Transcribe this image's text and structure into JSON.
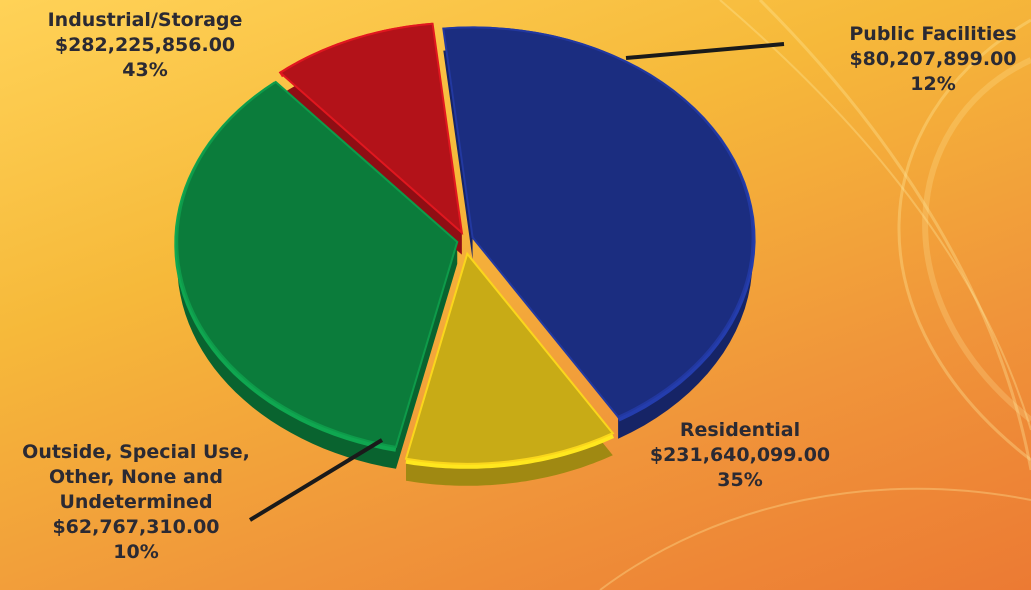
{
  "chart_data": {
    "type": "pie",
    "style": "3d-exploded",
    "title": "",
    "slices": [
      {
        "name": "Industrial/Storage",
        "amount": "$282,225,856.00",
        "value": 282225856.0,
        "percent": "43%",
        "color": "#1b2d80"
      },
      {
        "name": "Public Facilities",
        "amount": "$80,207,899.00",
        "value": 80207899.0,
        "percent": "12%",
        "color": "#c8ab16"
      },
      {
        "name": "Residential",
        "amount": "$231,640,099.00",
        "value": 231640099.0,
        "percent": "35%",
        "color": "#0b7c3b"
      },
      {
        "name": "Outside, Special Use, Other, None and Undetermined",
        "name_lines": [
          "Outside, Special Use,",
          "Other, None and",
          "Undetermined"
        ],
        "amount": "$62,767,310.00",
        "value": 62767310.0,
        "percent": "10%",
        "color": "#b31219"
      }
    ]
  }
}
